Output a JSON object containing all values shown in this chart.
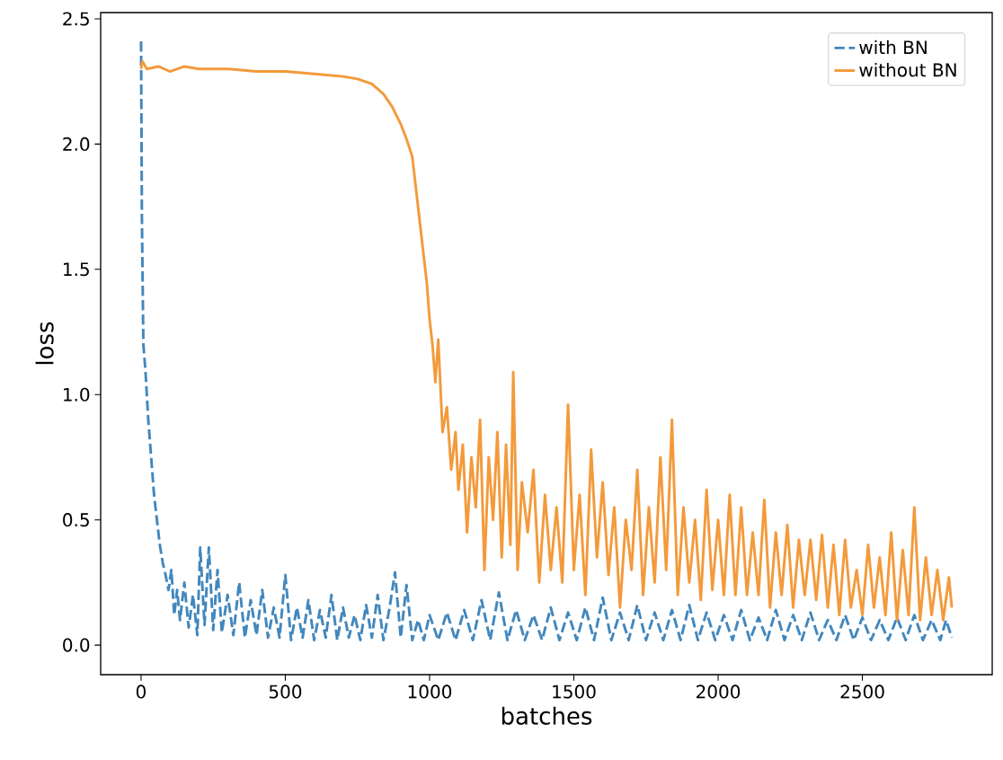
{
  "chart_data": {
    "type": "line",
    "xlabel": "batches",
    "ylabel": "loss",
    "xlim": [
      -140,
      2950
    ],
    "ylim": [
      -0.118,
      2.525
    ],
    "xticks": [
      0,
      500,
      1000,
      1500,
      2000,
      2500
    ],
    "yticks": [
      {
        "value": 0,
        "label": "0.0"
      },
      {
        "value": 0.5,
        "label": "0.5"
      },
      {
        "value": 1,
        "label": "1.0"
      },
      {
        "value": 1.5,
        "label": "1.5"
      },
      {
        "value": 2,
        "label": "2.0"
      },
      {
        "value": 2.5,
        "label": "2.5"
      }
    ],
    "legend": "top right",
    "grid": false,
    "series": [
      {
        "name": "with BN",
        "color": "#4287bd",
        "line_style": "dashed",
        "x": [
          0,
          3,
          8,
          15,
          25,
          35,
          45,
          55,
          65,
          75,
          85,
          95,
          105,
          115,
          125,
          135,
          150,
          165,
          180,
          195,
          205,
          220,
          235,
          250,
          265,
          280,
          300,
          320,
          340,
          360,
          380,
          400,
          420,
          440,
          460,
          480,
          500,
          520,
          540,
          560,
          580,
          600,
          620,
          640,
          660,
          680,
          700,
          720,
          740,
          760,
          780,
          800,
          820,
          840,
          860,
          880,
          900,
          920,
          940,
          960,
          980,
          1000,
          1030,
          1060,
          1090,
          1120,
          1150,
          1180,
          1210,
          1240,
          1270,
          1300,
          1330,
          1360,
          1390,
          1420,
          1450,
          1480,
          1510,
          1540,
          1570,
          1600,
          1630,
          1660,
          1690,
          1720,
          1750,
          1780,
          1810,
          1840,
          1870,
          1900,
          1930,
          1960,
          1990,
          2020,
          2050,
          2080,
          2110,
          2140,
          2170,
          2200,
          2230,
          2260,
          2290,
          2320,
          2350,
          2380,
          2410,
          2440,
          2470,
          2500,
          2530,
          2560,
          2590,
          2620,
          2650,
          2680,
          2710,
          2740,
          2770,
          2790,
          2810
        ],
        "values": [
          2.41,
          1.7,
          1.2,
          1.1,
          0.9,
          0.75,
          0.6,
          0.5,
          0.4,
          0.33,
          0.28,
          0.22,
          0.3,
          0.12,
          0.22,
          0.1,
          0.25,
          0.07,
          0.2,
          0.04,
          0.39,
          0.08,
          0.39,
          0.06,
          0.3,
          0.05,
          0.2,
          0.04,
          0.25,
          0.03,
          0.18,
          0.04,
          0.22,
          0.03,
          0.15,
          0.03,
          0.28,
          0.02,
          0.15,
          0.03,
          0.18,
          0.02,
          0.14,
          0.03,
          0.2,
          0.02,
          0.15,
          0.03,
          0.12,
          0.02,
          0.16,
          0.03,
          0.2,
          0.02,
          0.14,
          0.29,
          0.03,
          0.24,
          0.02,
          0.1,
          0.02,
          0.12,
          0.02,
          0.13,
          0.02,
          0.14,
          0.02,
          0.18,
          0.02,
          0.21,
          0.02,
          0.14,
          0.02,
          0.12,
          0.02,
          0.15,
          0.02,
          0.13,
          0.02,
          0.15,
          0.02,
          0.19,
          0.02,
          0.13,
          0.02,
          0.16,
          0.02,
          0.13,
          0.02,
          0.14,
          0.02,
          0.16,
          0.02,
          0.13,
          0.02,
          0.12,
          0.02,
          0.14,
          0.02,
          0.11,
          0.02,
          0.14,
          0.02,
          0.12,
          0.02,
          0.13,
          0.02,
          0.1,
          0.02,
          0.12,
          0.02,
          0.11,
          0.02,
          0.1,
          0.02,
          0.11,
          0.02,
          0.12,
          0.02,
          0.1,
          0.02,
          0.1,
          0.03
        ]
      },
      {
        "name": "without BN",
        "color": "#f39a3b",
        "line_style": "solid",
        "x": [
          0,
          5,
          20,
          60,
          100,
          150,
          200,
          300,
          400,
          500,
          600,
          700,
          750,
          800,
          840,
          870,
          900,
          920,
          940,
          950,
          960,
          970,
          980,
          990,
          1000,
          1010,
          1020,
          1030,
          1045,
          1060,
          1075,
          1090,
          1100,
          1115,
          1130,
          1145,
          1160,
          1175,
          1190,
          1205,
          1220,
          1235,
          1250,
          1265,
          1280,
          1290,
          1305,
          1320,
          1340,
          1360,
          1380,
          1400,
          1420,
          1440,
          1460,
          1480,
          1500,
          1520,
          1540,
          1560,
          1580,
          1600,
          1620,
          1640,
          1660,
          1680,
          1700,
          1720,
          1740,
          1760,
          1780,
          1800,
          1820,
          1840,
          1860,
          1880,
          1900,
          1920,
          1940,
          1960,
          1980,
          2000,
          2020,
          2040,
          2060,
          2080,
          2100,
          2120,
          2140,
          2160,
          2180,
          2200,
          2220,
          2240,
          2260,
          2280,
          2300,
          2320,
          2340,
          2360,
          2380,
          2400,
          2420,
          2440,
          2460,
          2480,
          2500,
          2520,
          2540,
          2560,
          2580,
          2600,
          2620,
          2640,
          2660,
          2680,
          2700,
          2720,
          2740,
          2760,
          2780,
          2800,
          2810
        ],
        "values": [
          2.3,
          2.33,
          2.3,
          2.31,
          2.29,
          2.31,
          2.3,
          2.3,
          2.29,
          2.29,
          2.28,
          2.27,
          2.26,
          2.24,
          2.2,
          2.15,
          2.08,
          2.02,
          1.95,
          1.85,
          1.75,
          1.65,
          1.55,
          1.45,
          1.3,
          1.2,
          1.05,
          1.22,
          0.85,
          0.95,
          0.7,
          0.85,
          0.62,
          0.8,
          0.45,
          0.75,
          0.55,
          0.9,
          0.3,
          0.75,
          0.5,
          0.85,
          0.35,
          0.8,
          0.4,
          1.09,
          0.3,
          0.65,
          0.45,
          0.7,
          0.25,
          0.6,
          0.3,
          0.55,
          0.25,
          0.96,
          0.3,
          0.6,
          0.2,
          0.78,
          0.35,
          0.65,
          0.28,
          0.55,
          0.15,
          0.5,
          0.3,
          0.7,
          0.2,
          0.55,
          0.25,
          0.75,
          0.3,
          0.9,
          0.2,
          0.55,
          0.25,
          0.5,
          0.18,
          0.62,
          0.22,
          0.5,
          0.2,
          0.6,
          0.2,
          0.55,
          0.2,
          0.45,
          0.2,
          0.58,
          0.15,
          0.45,
          0.2,
          0.48,
          0.15,
          0.42,
          0.2,
          0.42,
          0.18,
          0.44,
          0.15,
          0.4,
          0.12,
          0.42,
          0.15,
          0.3,
          0.12,
          0.4,
          0.15,
          0.35,
          0.12,
          0.45,
          0.1,
          0.38,
          0.12,
          0.55,
          0.1,
          0.35,
          0.12,
          0.3,
          0.1,
          0.27,
          0.15
        ]
      }
    ]
  }
}
